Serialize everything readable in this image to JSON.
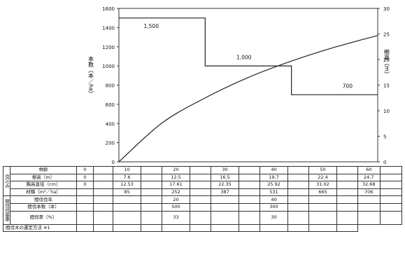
{
  "chart_data": {
    "type": "line",
    "left_axis": {
      "label": "本数（本／ha）",
      "ticks": [
        "0",
        "200",
        "400",
        "600",
        "800",
        "1000",
        "1200",
        "1400",
        "1600"
      ],
      "range": [
        0,
        1600
      ]
    },
    "right_axis": {
      "label": "樹高（m）",
      "ticks": [
        "0",
        "5",
        "10",
        "15",
        "20",
        "25",
        "30"
      ],
      "range": [
        0,
        30
      ]
    },
    "x_range": [
      0,
      60
    ],
    "series": [
      {
        "axis": "left",
        "step_points": [
          [
            0,
            1500
          ],
          [
            20,
            1500
          ],
          [
            20,
            1000
          ],
          [
            40,
            1000
          ],
          [
            40,
            700
          ],
          [
            60,
            700
          ]
        ],
        "labels": [
          {
            "text": "1,500",
            "x": 7.5,
            "y": 1395
          },
          {
            "text": "1,000",
            "x": 29,
            "y": 1070
          },
          {
            "text": "700",
            "x": 53,
            "y": 770
          }
        ]
      },
      {
        "axis": "right",
        "points": [
          [
            0,
            0
          ],
          [
            10,
            7.6
          ],
          [
            20,
            12.5
          ],
          [
            30,
            16.5
          ],
          [
            40,
            19.7
          ],
          [
            50,
            22.4
          ],
          [
            60,
            24.7
          ]
        ]
      }
    ]
  },
  "table": {
    "ages": [
      "0",
      "10",
      "20",
      "30",
      "40",
      "50",
      "60"
    ],
    "group_growth": "見込み",
    "group_thinning": "間伐伐基準",
    "rows_growth": [
      {
        "label": "林齢",
        "values": [
          "0",
          "10",
          "20",
          "30",
          "40",
          "50",
          "60"
        ]
      },
      {
        "label": "樹高（m）",
        "values": [
          "0",
          "7.6",
          "12.5",
          "16.5",
          "19.7",
          "22.4",
          "24.7"
        ]
      },
      {
        "label": "胸高直径（cm）",
        "values": [
          "0",
          "12.53",
          "17.61",
          "22.35",
          "25.92",
          "31.02",
          "32.68"
        ]
      },
      {
        "label": "材積（m³／ha）",
        "values": [
          "",
          "85",
          "252",
          "387",
          "531",
          "665",
          "706"
        ]
      }
    ],
    "rows_thinning": [
      {
        "label": "間伐伐年",
        "values": [
          "",
          "",
          "20",
          "",
          "40",
          "",
          ""
        ]
      },
      {
        "label": "間伐本数（本）",
        "values": [
          "",
          "",
          "500",
          "",
          "300",
          "",
          ""
        ]
      },
      {
        "label": "間伐率（%）",
        "values": [
          "",
          "",
          "33",
          "",
          "30",
          "",
          ""
        ]
      }
    ],
    "footer": "間伐木の選定方法 ※1"
  }
}
